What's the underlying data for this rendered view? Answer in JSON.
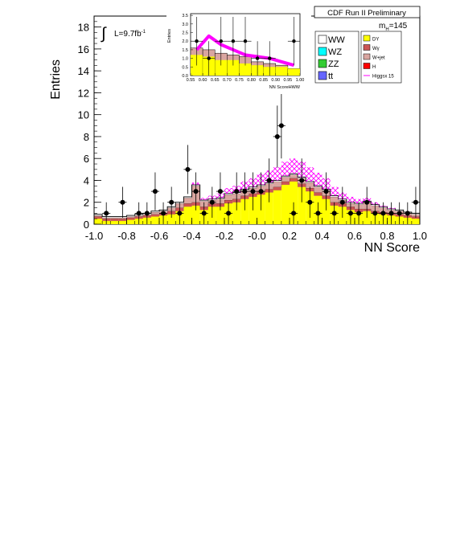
{
  "chart_data": {
    "type": "bar",
    "title": "CDF Run II Preliminary",
    "xlabel": "NN Score",
    "ylabel": "Entries",
    "xlim": [
      -1.0,
      1.0
    ],
    "ylim": [
      0,
      19
    ],
    "x_tick_labels": [
      "-1.0",
      "-0.8",
      "-0.6",
      "-0.4",
      "-0.2",
      "-0.0",
      "0.2",
      "0.4",
      "0.6",
      "0.8",
      "1.0"
    ],
    "y_tick_labels": [
      "0",
      "2",
      "4",
      "6",
      "8",
      "10",
      "12",
      "14",
      "16",
      "18"
    ],
    "luminosity_label": "L=9.7fb",
    "luminosity_sup": "-1",
    "mass_label": "m",
    "mass_sub": "H",
    "mass_value": "=145",
    "bin_edges": [
      -1.0,
      -0.95,
      -0.9,
      -0.85,
      -0.8,
      -0.75,
      -0.7,
      -0.65,
      -0.6,
      -0.55,
      -0.5,
      -0.45,
      -0.4,
      -0.35,
      -0.3,
      -0.25,
      -0.2,
      -0.15,
      -0.1,
      -0.05,
      0.0,
      0.05,
      0.1,
      0.15,
      0.2,
      0.25,
      0.3,
      0.35,
      0.4,
      0.45,
      0.5,
      0.55,
      0.6,
      0.65,
      0.7,
      0.75,
      0.8,
      0.85,
      0.9,
      0.95,
      1.0
    ],
    "series": [
      {
        "name": "DY",
        "color": "#ffff00",
        "values": [
          0.5,
          0.3,
          0.3,
          0.3,
          0.4,
          0.5,
          0.6,
          0.7,
          0.8,
          0.9,
          1.2,
          1.6,
          1.7,
          1.3,
          1.6,
          1.6,
          1.9,
          2.0,
          2.3,
          2.5,
          2.7,
          2.9,
          3.1,
          3.6,
          3.9,
          3.4,
          3.0,
          2.6,
          2.3,
          1.7,
          1.6,
          1.3,
          1.1,
          1.2,
          1.0,
          0.9,
          0.8,
          0.7,
          0.6,
          0.5
        ]
      },
      {
        "name": "Wγ",
        "color": "#cc5555",
        "values": [
          0.2,
          0.2,
          0.2,
          0.2,
          0.2,
          0.2,
          0.2,
          0.2,
          0.2,
          0.3,
          0.3,
          0.3,
          0.3,
          0.3,
          0.3,
          0.3,
          0.3,
          0.3,
          0.3,
          0.3,
          0.3,
          0.3,
          0.3,
          0.3,
          0.3,
          0.3,
          0.3,
          0.3,
          0.3,
          0.3,
          0.3,
          0.3,
          0.3,
          0.2,
          0.2,
          0.2,
          0.2,
          0.2,
          0.2,
          0.2
        ]
      },
      {
        "name": "W+jet",
        "color": "#d9a5a0",
        "values": [
          0.1,
          0.1,
          0.1,
          0.1,
          0.1,
          0.1,
          0.1,
          0.2,
          0.2,
          0.3,
          0.4,
          0.5,
          1.5,
          0.5,
          0.3,
          0.4,
          0.5,
          0.5,
          0.5,
          0.5,
          0.5,
          0.5,
          0.5,
          0.4,
          0.3,
          0.5,
          0.5,
          0.5,
          0.5,
          0.5,
          0.3,
          0.3,
          0.4,
          0.6,
          0.5,
          0.4,
          0.3,
          0.3,
          0.2,
          0.2
        ]
      },
      {
        "name": "WW",
        "color": "#ffffff",
        "values": [
          0.1,
          0.1,
          0.1,
          0.1,
          0.1,
          0.1,
          0.1,
          0.1,
          0.1,
          0.1,
          0.1,
          0.1,
          0.1,
          0.1,
          0.1,
          0.1,
          0.1,
          0.1,
          0.1,
          0.1,
          0.1,
          0.1,
          0.1,
          0.1,
          0.1,
          0.1,
          0.1,
          0.1,
          0.1,
          0.1,
          0.1,
          0.1,
          0.1,
          0.1,
          0.1,
          0.1,
          0.1,
          0.1,
          0.1,
          0.1
        ]
      },
      {
        "name": "Higgsx 15",
        "color": "#ff00ff",
        "values": [
          0.0,
          0.0,
          0.0,
          0.0,
          0.0,
          0.0,
          0.0,
          0.0,
          0.0,
          0.0,
          0.0,
          0.0,
          0.2,
          0.2,
          0.3,
          0.4,
          0.5,
          0.6,
          0.7,
          0.8,
          1.0,
          1.1,
          1.2,
          1.3,
          1.4,
          1.4,
          1.3,
          1.2,
          1.0,
          0.8,
          0.6,
          0.5,
          0.4,
          0.3,
          0.2,
          0.1,
          0.1,
          0.0,
          0.0,
          0.0
        ]
      }
    ],
    "data_points": {
      "x": [
        -0.925,
        -0.825,
        -0.725,
        -0.675,
        -0.625,
        -0.575,
        -0.525,
        -0.475,
        -0.425,
        -0.375,
        -0.325,
        -0.275,
        -0.225,
        -0.175,
        -0.125,
        -0.075,
        -0.025,
        0.025,
        0.075,
        0.125,
        0.15,
        0.225,
        0.275,
        0.325,
        0.375,
        0.425,
        0.475,
        0.525,
        0.575,
        0.625,
        0.675,
        0.725,
        0.775,
        0.825,
        0.875,
        0.925,
        0.975
      ],
      "y": [
        1,
        2,
        1,
        1,
        3,
        1,
        2,
        1,
        5,
        3,
        1,
        2,
        3,
        1,
        3,
        3,
        3,
        3,
        4,
        8,
        9,
        1,
        4,
        2,
        1,
        3,
        1,
        2,
        1,
        1,
        2,
        1,
        1,
        1,
        1,
        1,
        2
      ]
    },
    "legend": {
      "placement": "top-right",
      "left_entries": [
        "WW",
        "WZ",
        "ZZ",
        "tt"
      ],
      "left_colors": [
        "#ffffff",
        "#00ffff",
        "#33cc33",
        "#6666ff"
      ],
      "right_entries": [
        "DY",
        "Wγ",
        "W+jet",
        "H",
        "Higgsx 15"
      ],
      "right_colors": [
        "#ffff00",
        "#cc5555",
        "#d9a5a0",
        "#ff0000",
        "#ff00ff"
      ]
    },
    "inset": {
      "xlabel": "NN ScoreHWW",
      "ylabel": "Entries",
      "xlim": [
        0.55,
        1.0
      ],
      "ylim": [
        0,
        3.6
      ],
      "x_tick_labels": [
        "0.55",
        "0.60",
        "0.65",
        "0.70",
        "0.75",
        "0.80",
        "0.85",
        "0.90",
        "0.95",
        "1.00"
      ],
      "y_tick_labels": [
        "0.0",
        "0.5",
        "1.0",
        "1.5",
        "2.0",
        "2.5",
        "3.0",
        "3.5"
      ],
      "bin_edges": [
        0.55,
        0.6,
        0.65,
        0.7,
        0.75,
        0.8,
        0.85,
        0.9,
        0.95,
        1.0
      ],
      "dy": [
        1.2,
        1.1,
        0.9,
        0.9,
        0.7,
        0.6,
        0.5,
        0.5,
        0.4
      ],
      "total_bkg": [
        1.6,
        1.5,
        1.3,
        1.2,
        1.1,
        0.8,
        0.7,
        0.6,
        0.4
      ],
      "higgs_top": [
        1.5,
        2.3,
        1.8,
        1.5,
        1.2,
        1.1,
        1.0,
        0.8,
        0.6
      ],
      "data_x": [
        0.575,
        0.625,
        0.675,
        0.725,
        0.775,
        0.825,
        0.875,
        0.975
      ],
      "data_y": [
        2,
        1,
        2,
        2,
        2,
        1,
        1,
        2
      ]
    }
  }
}
